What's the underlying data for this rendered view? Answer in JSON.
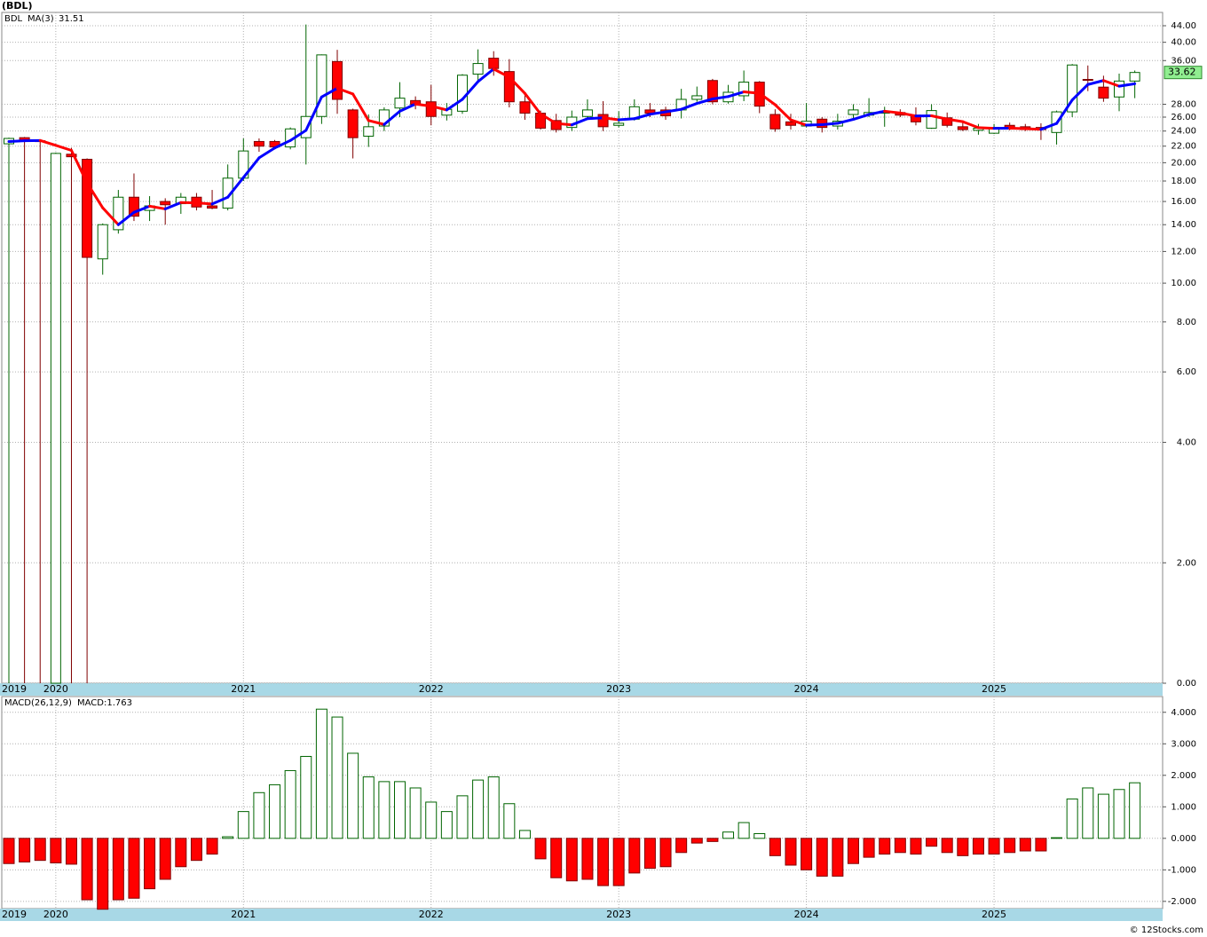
{
  "chart_data": [
    {
      "type": "candlestick",
      "title": "(BDL)",
      "symbol": "BDL",
      "log_scale": true,
      "grid": true,
      "up_color": "#006400",
      "down_color": "#ff0000",
      "categories": [
        "2019",
        null,
        null,
        "2020",
        null,
        null,
        null,
        null,
        null,
        null,
        null,
        null,
        null,
        null,
        null,
        "2021",
        null,
        null,
        null,
        null,
        null,
        null,
        null,
        null,
        null,
        null,
        null,
        "2022",
        null,
        null,
        null,
        null,
        null,
        null,
        null,
        null,
        null,
        null,
        null,
        "2023",
        null,
        null,
        null,
        null,
        null,
        null,
        null,
        null,
        null,
        null,
        null,
        "2024",
        null,
        null,
        null,
        null,
        null,
        null,
        null,
        null,
        null,
        null,
        null,
        "2025",
        null,
        null,
        null,
        null,
        null,
        null,
        null,
        null,
        null
      ],
      "open": [
        22.3,
        23.1,
        22.7,
        0,
        21.0,
        20.4,
        11.5,
        13.6,
        16.4,
        15.2,
        16.0,
        15.8,
        16.4,
        15.6,
        15.4,
        18.3,
        22.6,
        22.6,
        21.9,
        23.1,
        26.1,
        35.8,
        27.1,
        23.3,
        24.7,
        27.4,
        28.6,
        28.4,
        26.3,
        26.9,
        33.3,
        36.5,
        33.8,
        28.4,
        26.6,
        25.5,
        24.5,
        26.1,
        26.4,
        24.8,
        25.7,
        27.1,
        27.1,
        27.1,
        28.8,
        32.1,
        28.4,
        29.4,
        31.8,
        26.4,
        25.3,
        24.7,
        25.7,
        24.7,
        26.4,
        26.3,
        26.6,
        26.7,
        26.3,
        24.4,
        25.9,
        24.6,
        24.1,
        23.7,
        24.8,
        24.6,
        24.5,
        23.8,
        26.8,
        32.3,
        30.9,
        29.2,
        32.0
      ],
      "high": [
        23.1,
        23.2,
        22.8,
        21.2,
        21.8,
        20.5,
        14.1,
        17.1,
        18.8,
        16.5,
        16.3,
        16.8,
        16.8,
        17.1,
        19.8,
        23.0,
        23.0,
        22.8,
        24.5,
        44.3,
        37.3,
        38.3,
        27.3,
        26.4,
        27.5,
        31.8,
        29.3,
        31.3,
        28.2,
        33.3,
        38.4,
        38.0,
        36.3,
        29.5,
        27.0,
        26.5,
        27.0,
        28.8,
        28.5,
        26.9,
        28.8,
        28.2,
        27.6,
        30.6,
        31.0,
        32.4,
        31.3,
        34.0,
        32.0,
        27.2,
        26.5,
        28.2,
        26.0,
        26.5,
        28.0,
        29.0,
        27.6,
        27.2,
        27.5,
        28.0,
        26.7,
        25.4,
        25.0,
        25.0,
        25.2,
        25.0,
        25.1,
        27.0,
        35.3,
        35.0,
        33.0,
        33.4,
        34.0
      ],
      "low": [
        0,
        0,
        0,
        0,
        0,
        0,
        10.5,
        13.3,
        14.3,
        14.3,
        14.0,
        14.9,
        15.2,
        15.3,
        15.2,
        18.0,
        21.3,
        21.6,
        21.6,
        19.8,
        25.0,
        26.5,
        20.5,
        21.9,
        24.0,
        26.0,
        27.2,
        24.8,
        25.5,
        26.5,
        32.0,
        33.0,
        27.5,
        25.6,
        24.2,
        23.8,
        24.0,
        25.8,
        24.0,
        24.5,
        25.5,
        26.0,
        25.6,
        25.8,
        28.4,
        28.0,
        28.1,
        28.5,
        26.6,
        23.9,
        24.2,
        24.5,
        23.8,
        24.2,
        25.8,
        26.0,
        24.6,
        26.0,
        24.8,
        24.3,
        24.5,
        24.0,
        23.5,
        23.6,
        24.1,
        24.0,
        22.8,
        22.2,
        26.0,
        30.2,
        28.4,
        26.9,
        29.0
      ],
      "close": [
        23.0,
        22.6,
        22.6,
        21.1,
        20.7,
        11.6,
        14.0,
        16.4,
        14.7,
        15.6,
        15.7,
        16.4,
        15.5,
        15.4,
        18.3,
        21.4,
        22.0,
        21.9,
        24.3,
        26.1,
        37.2,
        28.8,
        23.1,
        24.6,
        27.1,
        29.0,
        28.0,
        26.1,
        27.2,
        33.1,
        35.4,
        34.4,
        28.4,
        26.6,
        24.4,
        24.2,
        26.0,
        27.1,
        24.6,
        25.1,
        27.6,
        26.6,
        26.2,
        28.8,
        29.4,
        28.4,
        30.0,
        31.8,
        27.7,
        24.3,
        24.8,
        25.4,
        24.5,
        25.4,
        27.1,
        26.7,
        26.9,
        26.3,
        25.3,
        27.0,
        24.8,
        24.2,
        24.4,
        24.5,
        24.3,
        24.2,
        24.2,
        26.8,
        35.1,
        32.2,
        29.0,
        32.0,
        33.62
      ],
      "ma": {
        "name": "MA(3)",
        "up_color": "#0000ff",
        "down_color": "#ff0000",
        "values": [
          22.6,
          22.7,
          22.73,
          22.1,
          21.47,
          17.8,
          15.43,
          14.0,
          15.03,
          15.57,
          15.33,
          15.9,
          15.87,
          15.77,
          16.4,
          18.37,
          20.57,
          21.77,
          22.73,
          24.1,
          29.2,
          30.7,
          29.7,
          25.5,
          24.93,
          26.9,
          28.03,
          27.7,
          27.1,
          28.8,
          31.9,
          34.3,
          32.73,
          29.8,
          26.47,
          25.07,
          24.87,
          25.77,
          25.9,
          25.6,
          25.77,
          26.43,
          26.8,
          27.2,
          28.13,
          28.87,
          29.27,
          30.07,
          29.83,
          27.93,
          25.6,
          24.83,
          24.9,
          25.1,
          25.67,
          26.4,
          26.9,
          26.63,
          26.17,
          26.2,
          25.7,
          25.33,
          24.47,
          24.37,
          24.4,
          24.33,
          24.23,
          25.07,
          28.7,
          31.37,
          32.1,
          31.07,
          31.51
        ]
      },
      "ylim": [
        1,
        47.5
      ],
      "yticks": [
        {
          "value": 44,
          "label": "44.00"
        },
        {
          "value": 40,
          "label": "40.00"
        },
        {
          "value": 36,
          "label": "36.00"
        },
        {
          "value": 28,
          "label": "28.00"
        },
        {
          "value": 26,
          "label": "26.00"
        },
        {
          "value": 24,
          "label": "24.00"
        },
        {
          "value": 22,
          "label": "22.00"
        },
        {
          "value": 20,
          "label": "20.00"
        },
        {
          "value": 18,
          "label": "18.00"
        },
        {
          "value": 16,
          "label": "16.00"
        },
        {
          "value": 14,
          "label": "14.00"
        },
        {
          "value": 12,
          "label": "12.00"
        },
        {
          "value": 10,
          "label": "10.00"
        },
        {
          "value": 8,
          "label": "8.00"
        },
        {
          "value": 6,
          "label": "6.00"
        },
        {
          "value": 4,
          "label": "4.00"
        },
        {
          "value": 2,
          "label": "2.00"
        },
        {
          "value": 0,
          "label": "0.00"
        }
      ]
    },
    {
      "type": "bar",
      "title": "MACD(26,12,9)",
      "subtitle": "MACD:1.763",
      "grid": true,
      "up_color": "#006400",
      "down_color": "#ff0000",
      "categories": [
        "2019",
        null,
        null,
        "2020",
        null,
        null,
        null,
        null,
        null,
        null,
        null,
        null,
        null,
        null,
        null,
        "2021",
        null,
        null,
        null,
        null,
        null,
        null,
        null,
        null,
        null,
        null,
        null,
        "2022",
        null,
        null,
        null,
        null,
        null,
        null,
        null,
        null,
        null,
        null,
        null,
        "2023",
        null,
        null,
        null,
        null,
        null,
        null,
        null,
        null,
        null,
        null,
        null,
        "2024",
        null,
        null,
        null,
        null,
        null,
        null,
        null,
        null,
        null,
        null,
        null,
        "2025",
        null,
        null,
        null,
        null,
        null,
        null,
        null,
        null,
        null
      ],
      "values": [
        -0.8,
        -0.75,
        -0.7,
        -0.78,
        -0.82,
        -1.95,
        -2.25,
        -1.95,
        -1.9,
        -1.6,
        -1.3,
        -0.9,
        -0.7,
        -0.5,
        0.05,
        0.85,
        1.45,
        1.7,
        2.15,
        2.6,
        4.1,
        3.85,
        2.7,
        1.95,
        1.8,
        1.8,
        1.6,
        1.15,
        0.85,
        1.35,
        1.85,
        1.95,
        1.1,
        0.25,
        -0.65,
        -1.25,
        -1.35,
        -1.3,
        -1.5,
        -1.5,
        -1.1,
        -0.95,
        -0.9,
        -0.45,
        -0.15,
        -0.1,
        0.2,
        0.5,
        0.15,
        -0.55,
        -0.85,
        -1.0,
        -1.2,
        -1.2,
        -0.8,
        -0.6,
        -0.5,
        -0.45,
        -0.5,
        -0.25,
        -0.45,
        -0.55,
        -0.5,
        -0.5,
        -0.45,
        -0.4,
        -0.4,
        0.02,
        1.25,
        1.6,
        1.4,
        1.55,
        1.763
      ],
      "ylim": [
        -2.23,
        4.5
      ],
      "yticks": [
        {
          "value": 4,
          "label": "4.000"
        },
        {
          "value": 3,
          "label": "3.000"
        },
        {
          "value": 2,
          "label": "2.000"
        },
        {
          "value": 1,
          "label": "1.000"
        },
        {
          "value": 0,
          "label": "0.000"
        },
        {
          "value": -1,
          "label": "-1.000"
        },
        {
          "value": -2,
          "label": "-2.000"
        }
      ]
    }
  ],
  "footer": "© 12Stocks.com"
}
